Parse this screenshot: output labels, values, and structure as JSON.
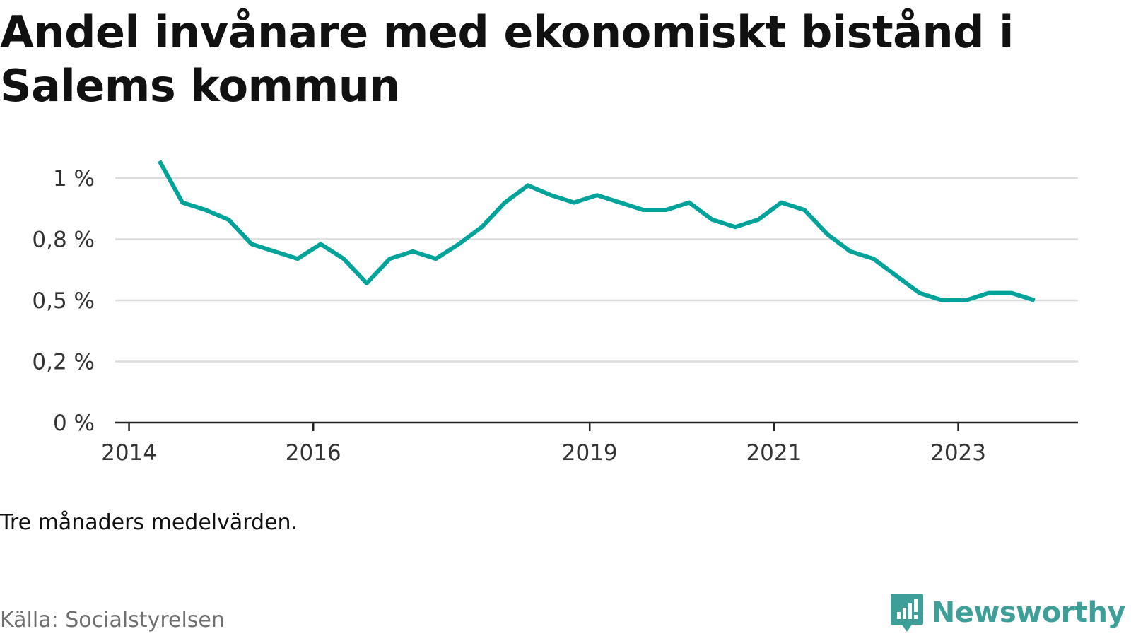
{
  "header": {
    "title": "Andel invånare med ekonomiskt bistånd i Salems kommun"
  },
  "footer": {
    "note": "Tre månaders medelvärden.",
    "source": "Källa: Socialstyrelsen",
    "brand": "Newsworthy",
    "brand_icon": "newsworthy-logo-icon"
  },
  "colors": {
    "line": "#00a39a",
    "grid": "#dcdcdc",
    "axis": "#222222",
    "brand": "#3e9e98",
    "source_text": "#6f6f6f"
  },
  "chart_data": {
    "type": "line",
    "title": "Andel invånare med ekonomiskt bistånd i Salems kommun",
    "xlabel": "",
    "ylabel": "",
    "x_tick_labels": [
      "2014",
      "2016",
      "2019",
      "2021",
      "2023"
    ],
    "x_tick_values": [
      2014.0,
      2016.0,
      2019.0,
      2021.0,
      2023.0
    ],
    "y_tick_labels": [
      "0 %",
      "0,2 %",
      "0,5 %",
      "0,8 %",
      "1 %"
    ],
    "y_tick_values": [
      0,
      0.25,
      0.5,
      0.75,
      1.0
    ],
    "xlim": [
      2013.85,
      2024.3
    ],
    "ylim": [
      0,
      1.0
    ],
    "grid": true,
    "legend": "none",
    "series": [
      {
        "x": [
          2014.33,
          2014.58,
          2014.83,
          2015.08,
          2015.33,
          2015.58,
          2015.83,
          2016.08,
          2016.33,
          2016.58,
          2016.83,
          2017.08,
          2017.33,
          2017.58,
          2017.83,
          2018.08,
          2018.33,
          2018.58,
          2018.83,
          2019.08,
          2019.33,
          2019.58,
          2019.83,
          2020.08,
          2020.33,
          2020.58,
          2020.83,
          2021.08,
          2021.33,
          2021.58,
          2021.83,
          2022.08,
          2022.33,
          2022.58,
          2022.83,
          2023.08,
          2023.33,
          2023.58,
          2023.83
        ],
        "y": [
          1.07,
          0.9,
          0.87,
          0.83,
          0.73,
          0.7,
          0.67,
          0.73,
          0.67,
          0.57,
          0.67,
          0.7,
          0.67,
          0.73,
          0.8,
          0.9,
          0.97,
          0.93,
          0.9,
          0.93,
          0.9,
          0.87,
          0.87,
          0.9,
          0.83,
          0.8,
          0.83,
          0.9,
          0.87,
          0.77,
          0.7,
          0.67,
          0.6,
          0.53,
          0.5,
          0.5,
          0.53,
          0.53,
          0.5
        ]
      }
    ]
  }
}
